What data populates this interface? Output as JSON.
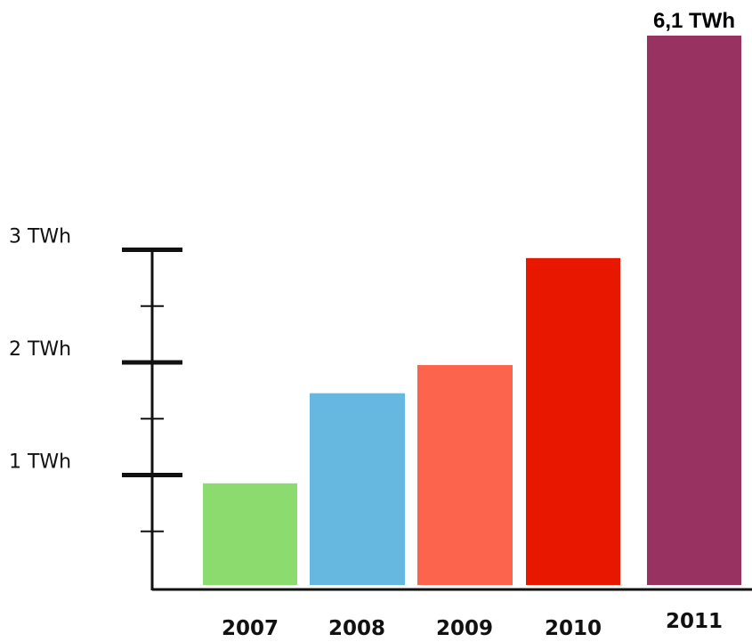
{
  "chart_data": {
    "type": "bar",
    "title": "",
    "xlabel": "",
    "ylabel": "",
    "categories": [
      "2007",
      "2008",
      "2009",
      "2010",
      "2011"
    ],
    "values": [
      0.95,
      1.75,
      2.0,
      2.95,
      6.1
    ],
    "colors": [
      "#8cdb6e",
      "#66b8e0",
      "#fd644e",
      "#e81800",
      "#983260"
    ],
    "axis_max_label": 3,
    "y_ticks": [
      {
        "value": 1,
        "label": "1 TWh"
      },
      {
        "value": 2,
        "label": "2 TWh"
      },
      {
        "value": 3,
        "label": "3 TWh"
      }
    ],
    "minor_ticks": [
      0.5,
      1.5,
      2.5
    ],
    "data_labels": [
      {
        "category": "2011",
        "text": "6,1 TWh"
      }
    ],
    "grid": false,
    "legend": "none"
  }
}
